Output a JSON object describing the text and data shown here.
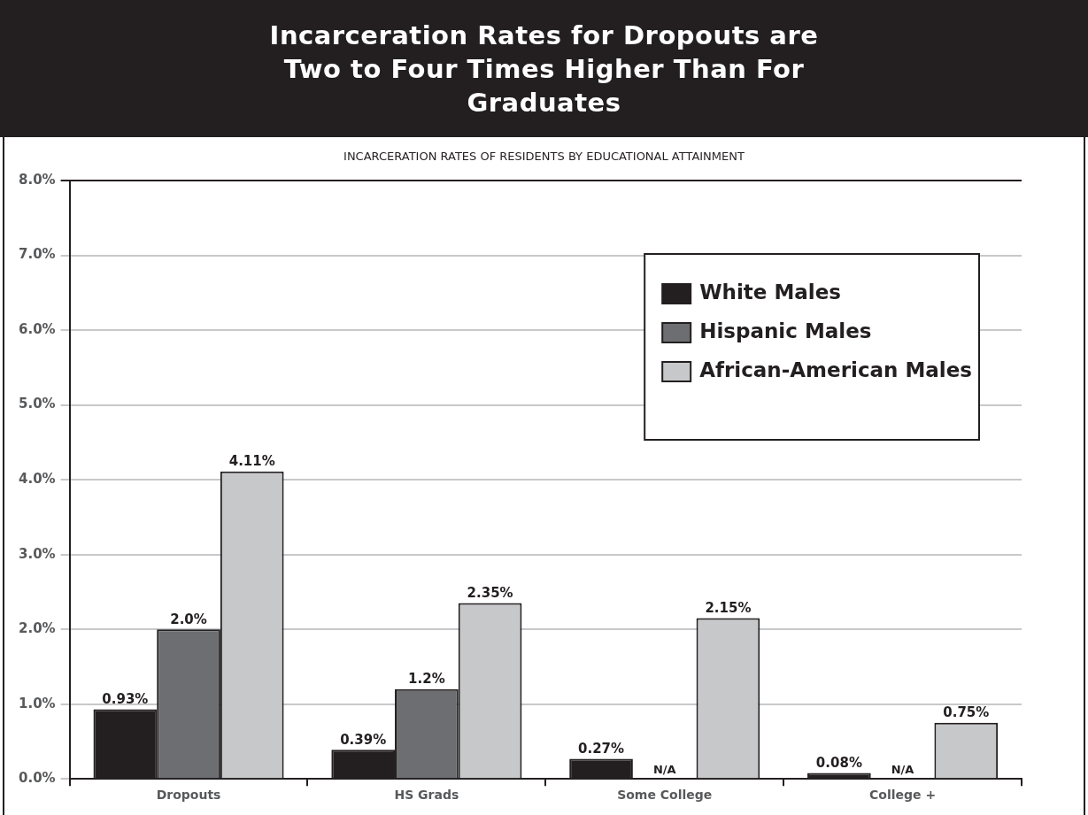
{
  "chart_data": {
    "type": "bar",
    "title": "Incarceration Rates for  Dropouts are Two to Four Times Higher Than For Graduates",
    "subtitle": "INCARCERATION RATES OF RESIDENTS BY EDUCATIONAL ATTAINMENT",
    "categories": [
      "Dropouts",
      "HS Grads",
      "Some College",
      "College +"
    ],
    "series": [
      {
        "name": "White Males",
        "color": "#231f20",
        "values": [
          0.93,
          0.39,
          0.27,
          0.08
        ],
        "value_labels": [
          "0.93%",
          "0.39%",
          "0.27%",
          "0.08%"
        ]
      },
      {
        "name": "Hispanic Males",
        "color": "#6d6e71",
        "values": [
          2.0,
          1.2,
          null,
          null
        ],
        "value_labels": [
          "2.0%",
          "1.2%",
          "N/A",
          "N/A"
        ]
      },
      {
        "name": "African-American Males",
        "color": "#c7c8ca",
        "values": [
          4.11,
          2.35,
          2.15,
          0.75
        ],
        "value_labels": [
          "4.11%",
          "2.35%",
          "2.15%",
          "0.75%"
        ]
      }
    ],
    "ylim": [
      0,
      8
    ],
    "yticks": [
      {
        "value": 0,
        "label": "0.0%"
      },
      {
        "value": 1,
        "label": "1.0%"
      },
      {
        "value": 2,
        "label": "2.0%"
      },
      {
        "value": 3,
        "label": "3.0%"
      },
      {
        "value": 4,
        "label": "4.0%"
      },
      {
        "value": 5,
        "label": "5.0%"
      },
      {
        "value": 6,
        "label": "6.0%"
      },
      {
        "value": 7,
        "label": "7.0%"
      },
      {
        "value": 8,
        "label": "8.0%"
      }
    ],
    "grid": "y",
    "legend": "top right"
  }
}
